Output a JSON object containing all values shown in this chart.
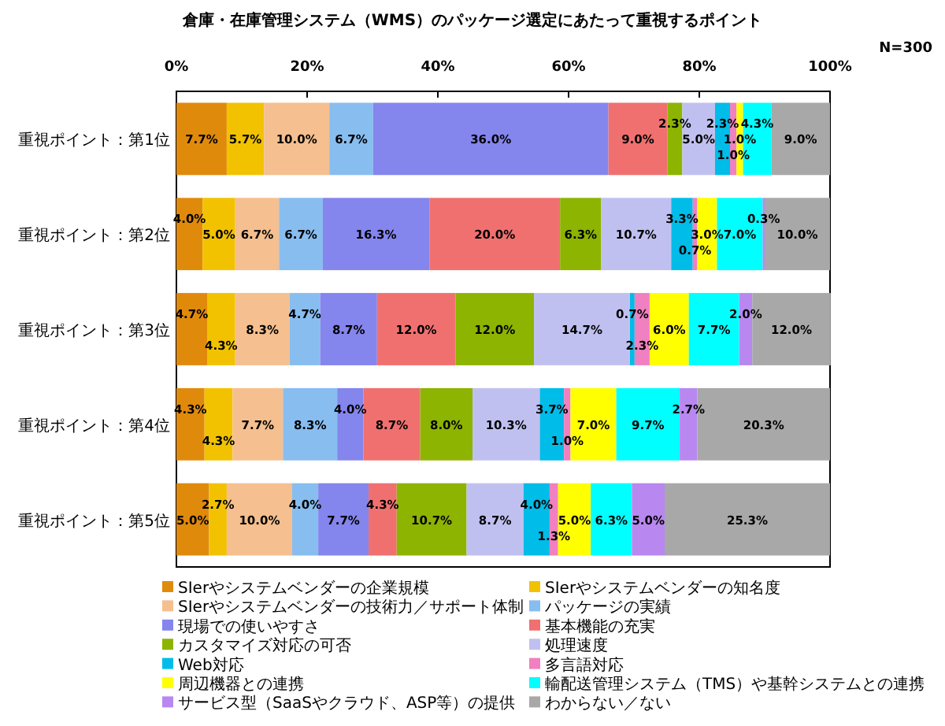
{
  "chart_data": {
    "type": "bar",
    "orientation": "horizontal",
    "stacked": true,
    "title": "倉庫・在庫管理システム（WMS）のパッケージ選定にあたって重視するポイント",
    "annotations": [
      "N=300"
    ],
    "categories": [
      "重視ポイント：第1位",
      "重視ポイント：第2位",
      "重視ポイント：第3位",
      "重視ポイント：第4位",
      "重視ポイント：第5位"
    ],
    "xlim": [
      0,
      100
    ],
    "xticks": [
      {
        "value": 0,
        "label": "0%"
      },
      {
        "value": 20,
        "label": "20%"
      },
      {
        "value": 40,
        "label": "40%"
      },
      {
        "value": 60,
        "label": "60%"
      },
      {
        "value": 80,
        "label": "80%"
      },
      {
        "value": 100,
        "label": "100%"
      }
    ],
    "legend": "bottom",
    "grid": false,
    "series": [
      {
        "name": "SIerやシステムベンダーの企業規模",
        "color": "#e08a0c",
        "values": [
          7.7,
          4.0,
          4.7,
          4.3,
          5.0
        ],
        "value_labels": [
          "7.7%",
          "4.0%",
          "4.7%",
          "4.3%",
          "5.0%"
        ]
      },
      {
        "name": "SIerやシステムベンダーの知名度",
        "color": "#f2c200",
        "values": [
          5.7,
          5.0,
          4.3,
          4.3,
          2.7
        ],
        "value_labels": [
          "5.7%",
          "5.0%",
          "4.3%",
          "4.3%",
          "2.7%"
        ]
      },
      {
        "name": "SIerやシステムベンダーの技術力／サポート体制",
        "color": "#f5bf8f",
        "values": [
          10.0,
          6.7,
          8.3,
          7.7,
          10.0
        ],
        "value_labels": [
          "10.0%",
          "6.7%",
          "8.3%",
          "7.7%",
          "10.0%"
        ]
      },
      {
        "name": "パッケージの実績",
        "color": "#88bdf0",
        "values": [
          6.7,
          6.7,
          4.7,
          8.3,
          4.0
        ],
        "value_labels": [
          "6.7%",
          "6.7%",
          "4.7%",
          "8.3%",
          "4.0%"
        ]
      },
      {
        "name": "現場での使いやすさ",
        "color": "#8585ee",
        "values": [
          36.0,
          16.3,
          8.7,
          4.0,
          7.7
        ],
        "value_labels": [
          "36.0%",
          "16.3%",
          "8.7%",
          "4.0%",
          "7.7%"
        ]
      },
      {
        "name": "基本機能の充実",
        "color": "#f07070",
        "values": [
          9.0,
          20.0,
          12.0,
          8.7,
          4.3
        ],
        "value_labels": [
          "9.0%",
          "20.0%",
          "12.0%",
          "8.7%",
          "4.3%"
        ]
      },
      {
        "name": "カスタマイズ対応の可否",
        "color": "#8db400",
        "values": [
          2.3,
          6.3,
          12.0,
          8.0,
          10.7
        ],
        "value_labels": [
          "2.3%",
          "6.3%",
          "12.0%",
          "8.0%",
          "10.7%"
        ]
      },
      {
        "name": "処理速度",
        "color": "#c0c0f0",
        "values": [
          5.0,
          10.7,
          14.7,
          10.3,
          8.7
        ],
        "value_labels": [
          "5.0%",
          "10.7%",
          "14.7%",
          "10.3%",
          "8.7%"
        ]
      },
      {
        "name": "Web対応",
        "color": "#00bce8",
        "values": [
          2.3,
          3.3,
          0.7,
          3.7,
          4.0
        ],
        "value_labels": [
          "2.3%",
          "3.3%",
          "0.7%",
          "3.7%",
          "4.0%"
        ]
      },
      {
        "name": "多言語対応",
        "color": "#f080c0",
        "values": [
          1.0,
          0.7,
          2.3,
          1.0,
          1.3
        ],
        "value_labels": [
          "1.0%",
          "0.7%",
          "2.3%",
          "1.0%",
          "1.3%"
        ]
      },
      {
        "name": "周辺機器との連携",
        "color": "#ffff00",
        "values": [
          1.0,
          3.0,
          6.0,
          7.0,
          5.0
        ],
        "value_labels": [
          "1.0%",
          "3.0%",
          "6.0%",
          "7.0%",
          "5.0%"
        ]
      },
      {
        "name": "輸配送管理システム（TMS）や基幹システムとの連携",
        "color": "#00ffff",
        "values": [
          4.3,
          7.0,
          7.7,
          9.7,
          6.3
        ],
        "value_labels": [
          "4.3%",
          "7.0%",
          "7.7%",
          "9.7%",
          "6.3%"
        ]
      },
      {
        "name": "サービス型（SaaSやクラウド、ASP等）の提供",
        "color": "#b888f0",
        "values": [
          0,
          0.3,
          2.0,
          2.7,
          5.0
        ],
        "value_labels": [
          null,
          "0.3%",
          "2.0%",
          "2.7%",
          "5.0%"
        ]
      },
      {
        "name": "わからない／ない",
        "color": "#a8a8a8",
        "values": [
          9.0,
          10.0,
          12.0,
          20.3,
          25.3
        ],
        "value_labels": [
          "9.0%",
          "10.0%",
          "12.0%",
          "20.3%",
          "25.3%"
        ]
      }
    ]
  }
}
